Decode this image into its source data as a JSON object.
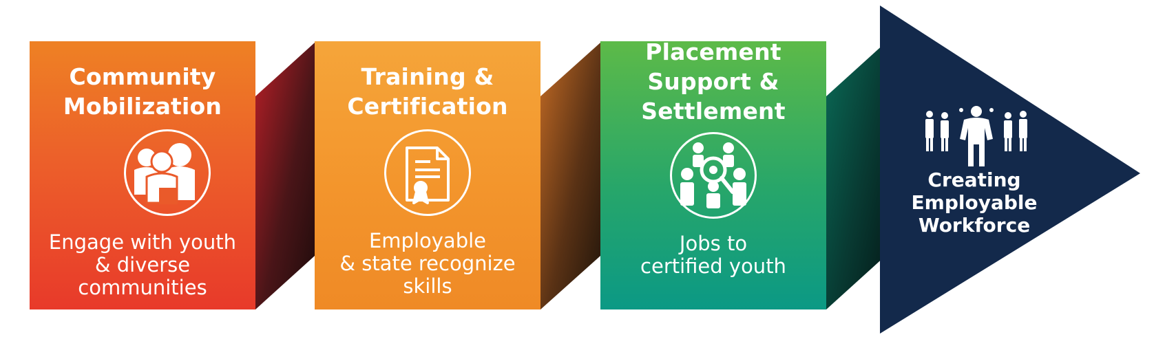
{
  "steps": [
    {
      "title_lines": [
        "Community",
        "Mobilization"
      ],
      "icon": "community-group-icon",
      "desc_lines": [
        "Engage with youth",
        "& diverse",
        "communities"
      ],
      "color_top": "#ee8124",
      "color_bottom": "#e83a2a"
    },
    {
      "title_lines": [
        "Training &",
        "Certification"
      ],
      "icon": "certificate-icon",
      "desc_lines": [
        "Employable",
        "& state recognize",
        "skills"
      ],
      "color_top": "#f5a53a",
      "color_bottom": "#ef8a26"
    },
    {
      "title_lines": [
        "Placement",
        "Support &",
        "Settlement"
      ],
      "icon": "people-search-icon",
      "desc_lines": [
        "Jobs to",
        "certified youth"
      ],
      "color_top": "#5dba48",
      "color_bottom": "#0b9985"
    }
  ],
  "outcome": {
    "title_lines": [
      "Creating",
      "Employable",
      "Workforce"
    ],
    "icon": "workforce-leader-icon",
    "color": "#13294b"
  }
}
